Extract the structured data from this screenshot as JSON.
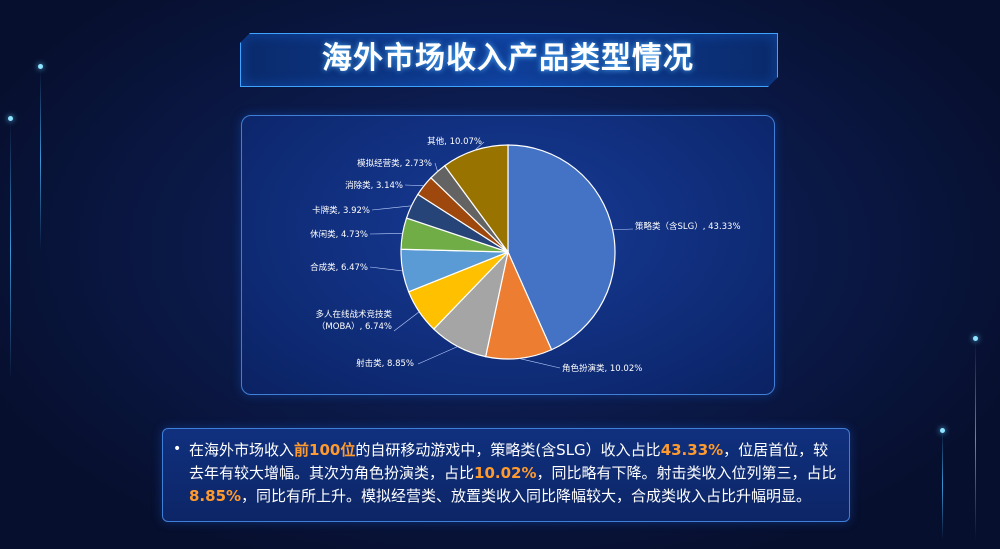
{
  "page": {
    "title": "海外市场收入产品类型情况",
    "bullet": "•",
    "summary_parts": [
      {
        "text": "在海外市场收入",
        "hl": false
      },
      {
        "text": "前100位",
        "hl": true
      },
      {
        "text": "的自研移动游戏中，策略类(含SLG）收入占比",
        "hl": false
      },
      {
        "text": "43.33%",
        "hl": true
      },
      {
        "text": "，位居首位，较去年有较大增幅。其次为角色扮演类，占比",
        "hl": false
      },
      {
        "text": "10.02%",
        "hl": true
      },
      {
        "text": "，同比略有下降。射击类收入位列第三，占比",
        "hl": false
      },
      {
        "text": "8.85%",
        "hl": true
      },
      {
        "text": "，同比有所上升。模拟经营类、放置类收入同比降幅较大，合成类收入占比升幅明显。",
        "hl": false
      }
    ]
  },
  "chart_data": {
    "type": "pie",
    "title": "",
    "start_angle_deg": 0,
    "direction": "clockwise",
    "slices": [
      {
        "name": "策略类（含SLG）",
        "value": 43.33,
        "label": "策略类（含SLG）, 43.33%",
        "color": "#4472c4"
      },
      {
        "name": "角色扮演类",
        "value": 10.02,
        "label": "角色扮演类, 10.02%",
        "color": "#ed7d31"
      },
      {
        "name": "射击类",
        "value": 8.85,
        "label": "射击类, 8.85%",
        "color": "#a5a5a5"
      },
      {
        "name": "多人在线战术竞技类（MOBA）",
        "value": 6.74,
        "label": "多人在线战术竞技类（MOBA）, 6.74%",
        "color": "#ffc000"
      },
      {
        "name": "合成类",
        "value": 6.47,
        "label": "合成类, 6.47%",
        "color": "#5b9bd5"
      },
      {
        "name": "休闲类",
        "value": 4.73,
        "label": "休闲类, 4.73%",
        "color": "#70ad47"
      },
      {
        "name": "卡牌类",
        "value": 3.92,
        "label": "卡牌类, 3.92%",
        "color": "#264478"
      },
      {
        "name": "消除类",
        "value": 3.14,
        "label": "消除类, 3.14%",
        "color": "#9e480e"
      },
      {
        "name": "模拟经营类",
        "value": 2.73,
        "label": "模拟经营类, 2.73%",
        "color": "#636363"
      },
      {
        "name": "其他",
        "value": 10.07,
        "label": "其他, 10.07%",
        "color": "#997300"
      }
    ]
  }
}
